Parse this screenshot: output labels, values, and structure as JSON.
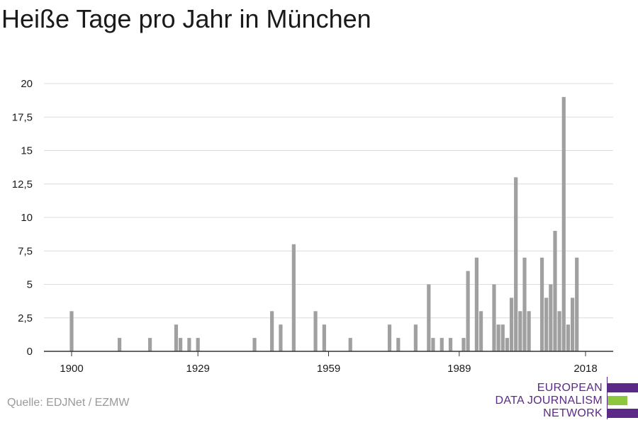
{
  "title": "Heiße Tage pro Jahr in München",
  "source": "Quelle: EDJNet / EZMW",
  "logo": {
    "lines": [
      "EUROPEAN",
      "DATA JOURNALISM",
      "NETWORK"
    ],
    "colors": {
      "purple": "#5b2a86",
      "green": "#8dc63f"
    }
  },
  "colors": {
    "bar": "#a0a0a0",
    "grid": "#dcdcdc",
    "axis": "#333333",
    "text": "#1a1a1a"
  },
  "chart_data": {
    "type": "bar",
    "title": "Heiße Tage pro Jahr in München",
    "xlabel": "",
    "ylabel": "",
    "xlim": [
      1900,
      2018
    ],
    "ylim": [
      0,
      20
    ],
    "x_ticks": [
      1900,
      1929,
      1959,
      1989,
      2018
    ],
    "y_ticks": [
      0,
      2.5,
      5,
      7.5,
      10,
      12.5,
      15,
      17.5,
      20
    ],
    "y_tick_labels": [
      "0",
      "2,5",
      "5",
      "7,5",
      "10",
      "12,5",
      "15",
      "17,5",
      "20"
    ],
    "grid": true,
    "x": [
      1900,
      1911,
      1918,
      1924,
      1925,
      1927,
      1929,
      1942,
      1946,
      1948,
      1951,
      1956,
      1958,
      1964,
      1973,
      1975,
      1979,
      1982,
      1983,
      1985,
      1987,
      1990,
      1991,
      1993,
      1994,
      1997,
      1998,
      1999,
      2000,
      2001,
      2002,
      2003,
      2004,
      2005,
      2006,
      2008,
      2009,
      2010,
      2011,
      2012,
      2013,
      2014,
      2015,
      2016,
      2017
    ],
    "values": [
      3,
      1,
      1,
      2,
      1,
      1,
      1,
      1,
      3,
      2,
      8,
      3,
      2,
      1,
      2,
      1,
      2,
      5,
      1,
      1,
      1,
      1,
      6,
      7,
      3,
      5,
      2,
      2,
      1,
      4,
      13,
      3,
      7,
      3,
      0,
      7,
      4,
      5,
      9,
      3,
      19,
      2,
      4,
      7,
      0
    ]
  }
}
